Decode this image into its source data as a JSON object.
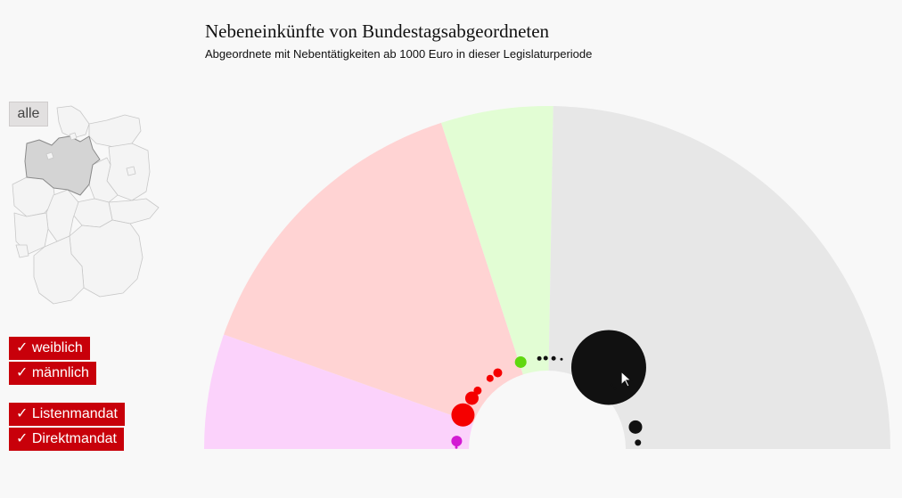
{
  "header": {
    "title": "Nebeneinkünfte von Bundestagsabgeordneten",
    "subtitle": "Abgeordnete mit Nebentätigkeiten ab 1000 Euro in dieser Legislaturperiode"
  },
  "controls": {
    "alle_label": "alle",
    "filters": [
      {
        "label": "✓ weiblich",
        "checked": true
      },
      {
        "label": "✓ männlich",
        "checked": true
      },
      {
        "label": "✓ Listenmandat",
        "checked": true
      },
      {
        "label": "✓ Direktmandat",
        "checked": true
      }
    ],
    "button_color": "#c8000a"
  },
  "map": {
    "selected_state_color": "#d4d4d4",
    "state_fill": "#f4f4f4",
    "state_stroke": "#c8c8c8"
  },
  "chart_data": {
    "type": "semicircle-bubble",
    "title": "",
    "sectors": [
      {
        "color": "#fbd2fb",
        "start_deg": 0,
        "end_deg": 19.5
      },
      {
        "color": "#ffd3d3",
        "start_deg": 19.5,
        "end_deg": 72
      },
      {
        "color": "#e2fdd4",
        "start_deg": 72,
        "end_deg": 91
      },
      {
        "color": "#e7e7e7",
        "start_deg": 91,
        "end_deg": 180
      }
    ],
    "bubbles": [
      {
        "color": "#d21ad2",
        "angle_deg": 5,
        "radius": 6
      },
      {
        "color": "#d21ad2",
        "angle_deg": 1,
        "radius": 1.5
      },
      {
        "color": "#f50000",
        "angle_deg": 22,
        "radius": 13
      },
      {
        "color": "#f50000",
        "angle_deg": 34,
        "radius": 7.5
      },
      {
        "color": "#f50000",
        "angle_deg": 40,
        "radius": 4.5
      },
      {
        "color": "#f50000",
        "angle_deg": 51,
        "radius": 4
      },
      {
        "color": "#f50000",
        "angle_deg": 57,
        "radius": 5
      },
      {
        "color": "#5fd80f",
        "angle_deg": 73,
        "radius": 6.5
      },
      {
        "color": "#111111",
        "angle_deg": 85,
        "radius": 2.5
      },
      {
        "color": "#111111",
        "angle_deg": 89,
        "radius": 2.5
      },
      {
        "color": "#111111",
        "angle_deg": 94,
        "radius": 2.5
      },
      {
        "color": "#111111",
        "angle_deg": 99,
        "radius": 1.5
      },
      {
        "color": "#111111",
        "angle_deg": 127,
        "radius": 42
      },
      {
        "color": "#111111",
        "angle_deg": 135,
        "radius": 1.5
      },
      {
        "color": "#111111",
        "angle_deg": 138,
        "radius": 1.5
      },
      {
        "color": "#111111",
        "angle_deg": 166,
        "radius": 7.5
      },
      {
        "color": "#111111",
        "angle_deg": 176,
        "radius": 3.5
      }
    ]
  }
}
